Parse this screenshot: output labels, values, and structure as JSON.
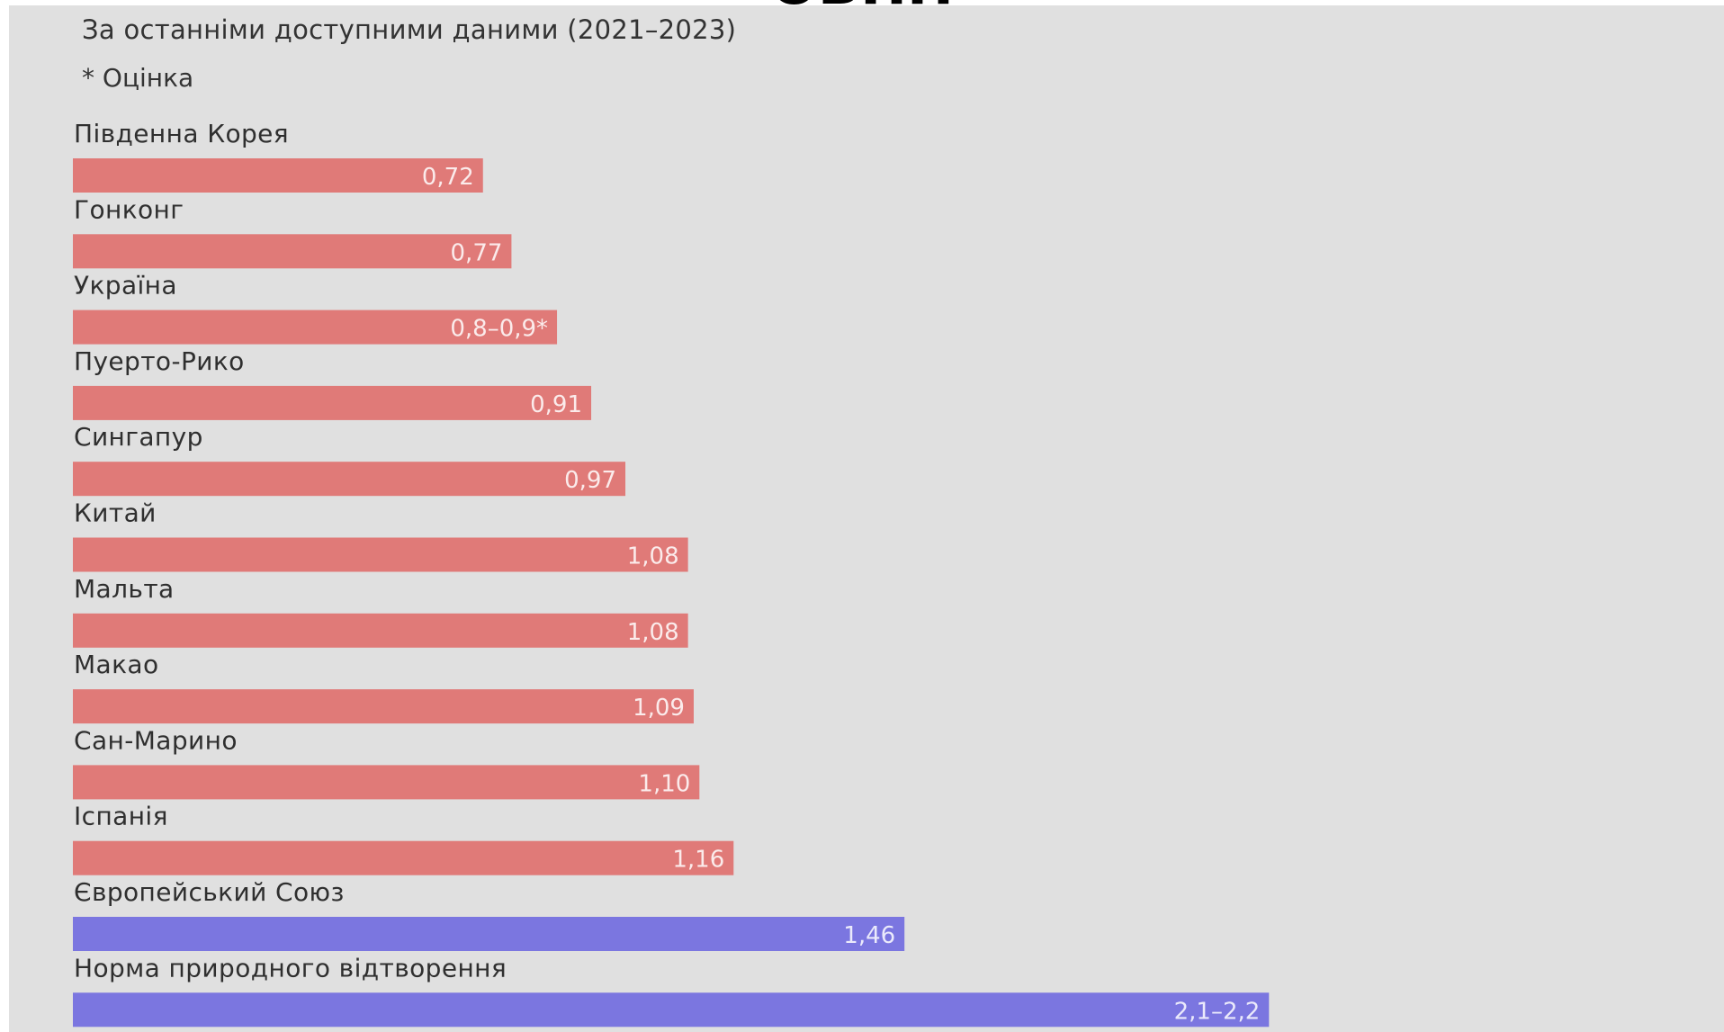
{
  "header": {
    "title": "ΘΒΠΠ",
    "subtitle": "За останніми доступними даними (2021–2023)",
    "footnote": "* Оцінка"
  },
  "chart_data": {
    "type": "bar",
    "orientation": "horizontal",
    "categories": [
      "Південна Корея",
      "Гонконг",
      "Україна",
      "Пуерто-Рико",
      "Сингапур",
      "Китай",
      "Мальта",
      "Макао",
      "Сан-Марино",
      "Іспанія",
      "Європейський Союз",
      "Норма природного відтворення"
    ],
    "values": [
      0.72,
      0.77,
      0.85,
      0.91,
      0.97,
      1.08,
      1.08,
      1.09,
      1.1,
      1.16,
      1.46,
      2.1
    ],
    "value_labels": [
      "0,72",
      "0,77",
      "0,8–0,9*",
      "0,91",
      "0,97",
      "1,08",
      "1,08",
      "1,09",
      "1,10",
      "1,16",
      "1,46",
      "2,1–2,2"
    ],
    "colors": [
      "#e07a78",
      "#e07a78",
      "#e07a78",
      "#e07a78",
      "#e07a78",
      "#e07a78",
      "#e07a78",
      "#e07a78",
      "#e07a78",
      "#e07a78",
      "#7b76e0",
      "#7b76e0"
    ],
    "title": "",
    "subtitle": "За останніми доступними даними (2021–2023)",
    "xlabel": "",
    "ylabel": "",
    "xlim": [
      0,
      2.4
    ],
    "grid": false
  }
}
